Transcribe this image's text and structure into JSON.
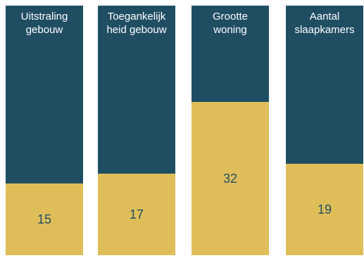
{
  "colors": {
    "remainder": "#1f4e63",
    "value": "#dfbe5a"
  },
  "chart_data": {
    "type": "bar",
    "stacked": true,
    "categories": [
      "Uitstraling\ngebouw",
      "Toegankelijk\nheid gebouw",
      "Grootte\nwoning",
      "Aantal\nslaapkamers"
    ],
    "values": [
      15,
      17,
      32,
      19
    ],
    "ylim": [
      0,
      52
    ],
    "grid": false,
    "legend": "none"
  }
}
